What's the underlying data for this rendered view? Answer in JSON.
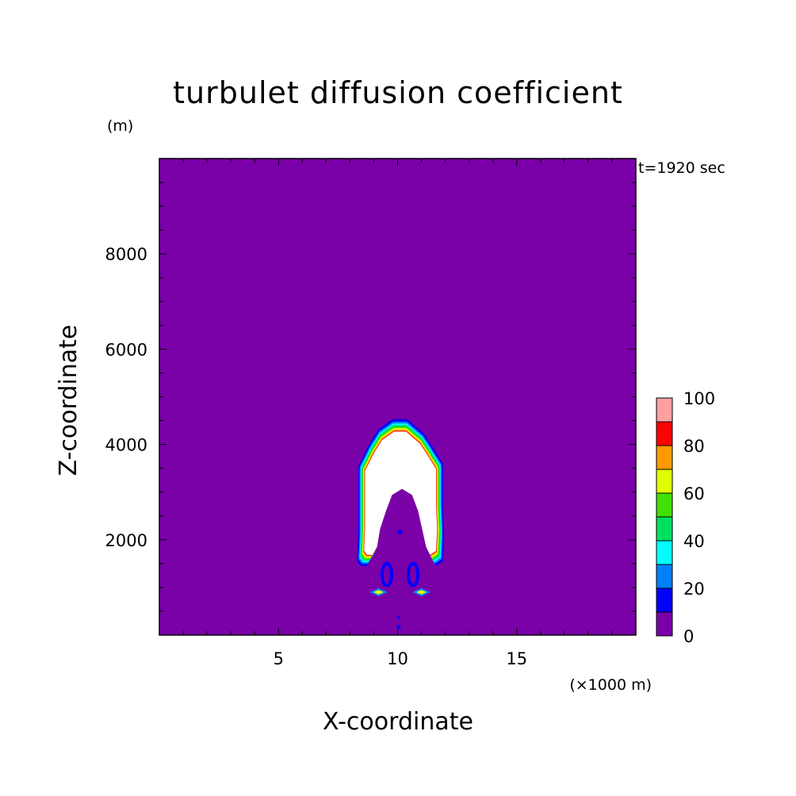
{
  "chart_data": {
    "type": "heatmap",
    "title": "turbulet diffusion coefficient",
    "xlabel": "X-coordinate",
    "ylabel": "Z-coordinate",
    "x_unit": "(×1000 m)",
    "y_unit": "(m)",
    "time_label": "t=1920 sec",
    "xlim": [
      0,
      20
    ],
    "ylim": [
      0,
      10000
    ],
    "xticks": [
      5,
      10,
      15
    ],
    "yticks": [
      2000,
      4000,
      6000,
      8000
    ],
    "colorbar": {
      "levels": [
        0,
        10,
        20,
        30,
        40,
        50,
        60,
        70,
        80,
        90,
        100
      ],
      "tick_labels": [
        "0",
        "20",
        "40",
        "60",
        "80",
        "100"
      ],
      "colors": [
        "#7a00a8",
        "#0000ff",
        "#0080ff",
        "#00ffff",
        "#00e060",
        "#40e000",
        "#e0ff00",
        "#ff9900",
        "#ff0000",
        "#ffa0a0"
      ],
      "above_max_color": "#ffffff"
    },
    "features": [
      {
        "name": "plume",
        "x_range": [
          8.3,
          11.9
        ],
        "z_range": [
          1500,
          4500
        ],
        "max_value": ">100"
      },
      {
        "name": "lower-vortices",
        "x_range": [
          9.3,
          11.0
        ],
        "z_range": [
          800,
          1500
        ],
        "max_value": 60
      }
    ]
  },
  "colors": {
    "background": "#7a00a8",
    "plot_frame": "#000000"
  }
}
